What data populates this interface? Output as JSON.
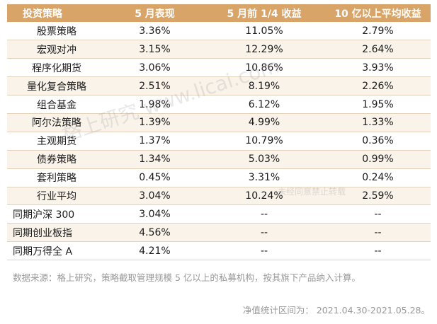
{
  "table": {
    "headers": [
      "投资策略",
      "5 月表现",
      "5 月前 1/4 收益",
      "10 亿以上平均收益"
    ],
    "rows": [
      {
        "name": "股票策略",
        "may": "3.36%",
        "q1": "11.05%",
        "avg": "2.79%"
      },
      {
        "name": "宏观对冲",
        "may": "3.15%",
        "q1": "12.29%",
        "avg": "2.64%"
      },
      {
        "name": "程序化期货",
        "may": "3.06%",
        "q1": "10.86%",
        "avg": "3.93%"
      },
      {
        "name": "量化复合策略",
        "may": "2.51%",
        "q1": "8.19%",
        "avg": "2.26%"
      },
      {
        "name": "组合基金",
        "may": "1.98%",
        "q1": "6.12%",
        "avg": "1.95%"
      },
      {
        "name": "阿尔法策略",
        "may": "1.39%",
        "q1": "4.99%",
        "avg": "1.33%"
      },
      {
        "name": "主观期货",
        "may": "1.37%",
        "q1": "10.79%",
        "avg": "0.36%"
      },
      {
        "name": "债券策略",
        "may": "1.34%",
        "q1": "5.03%",
        "avg": "0.99%"
      },
      {
        "name": "套利策略",
        "may": "0.45%",
        "q1": "3.31%",
        "avg": "0.24%"
      },
      {
        "name": "行业平均",
        "may": "3.04%",
        "q1": "10.24%",
        "avg": "2.59%"
      },
      {
        "name": "同期沪深 300",
        "may": "3.04%",
        "q1": "--",
        "avg": "--"
      },
      {
        "name": "同期创业板指",
        "may": "4.56%",
        "q1": "--",
        "avg": "--"
      },
      {
        "name": "同期万得全 A",
        "may": "4.21%",
        "q1": "--",
        "avg": "--"
      }
    ]
  },
  "note": "数据来源：格上研究，策略截取管理规模 5 亿以上的私募机构，按其旗下产品纳入计算。",
  "period": "净值统计区间为： 2021.04.30-2021.05.28。",
  "watermark": {
    "main": "格上研究 www.licai.com",
    "sub": "未经同意禁止转载"
  }
}
